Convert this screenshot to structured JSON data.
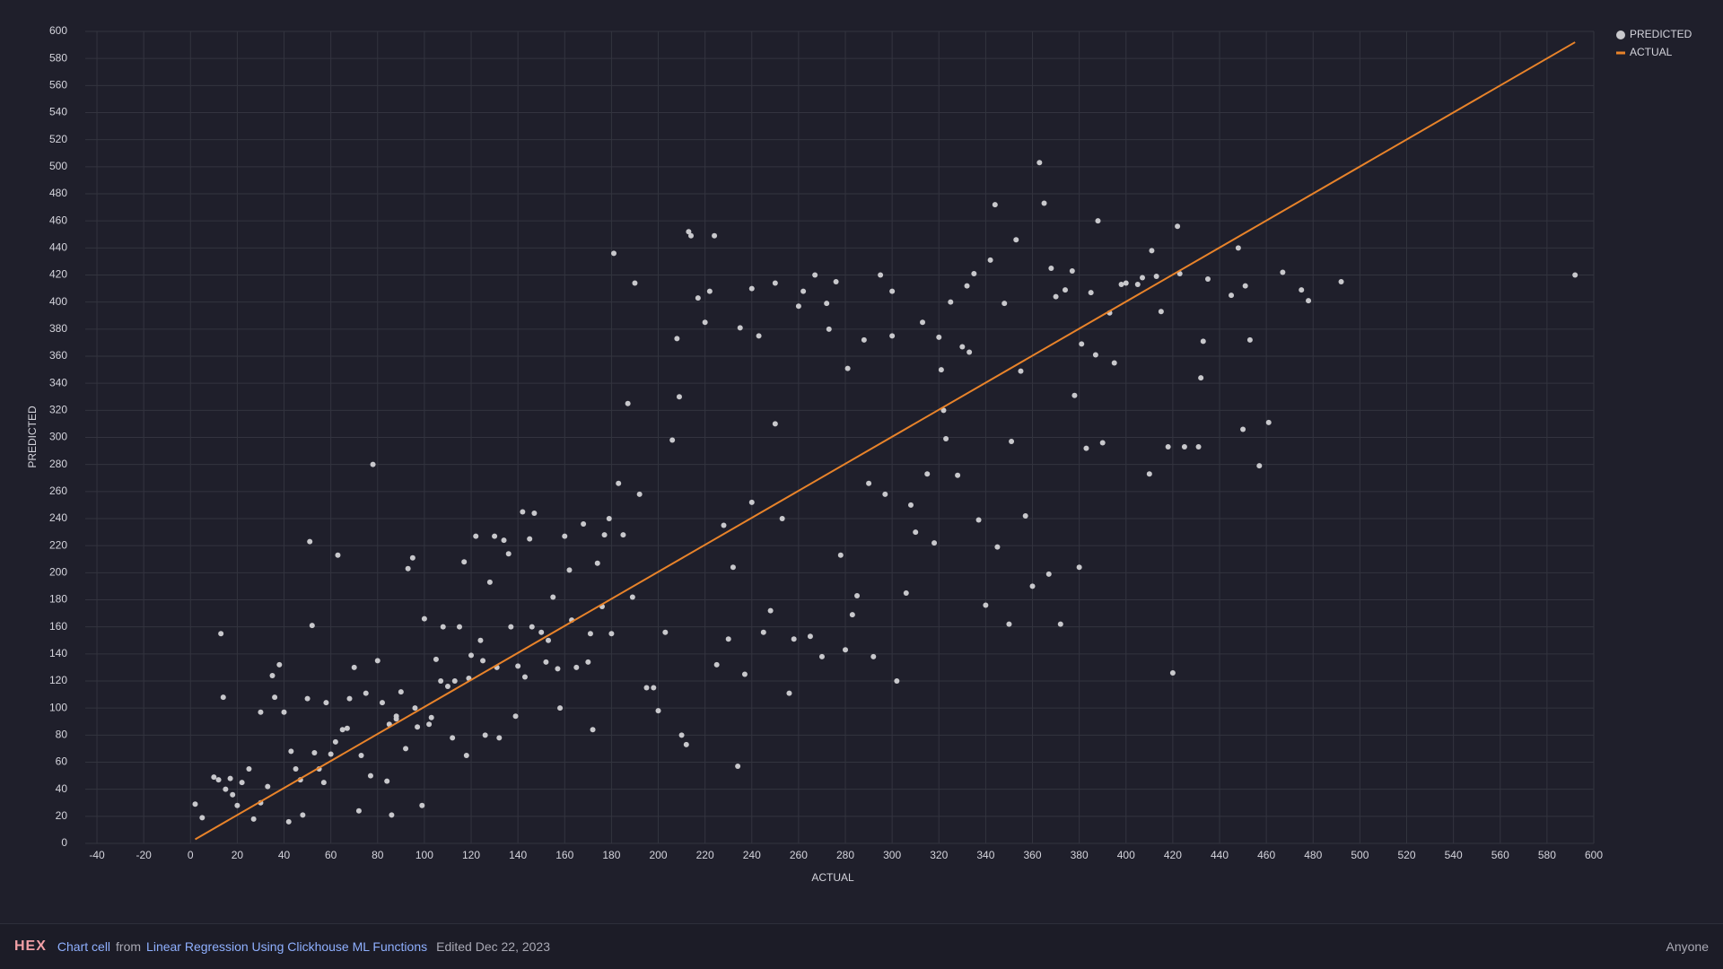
{
  "chart_data": {
    "type": "scatter",
    "x_label": "ACTUAL",
    "y_label": "PREDICTED",
    "xlim": [
      -45,
      600
    ],
    "ylim": [
      0,
      600
    ],
    "xticks": [
      -40,
      -20,
      0,
      20,
      40,
      60,
      80,
      100,
      120,
      140,
      160,
      180,
      200,
      220,
      240,
      260,
      280,
      300,
      320,
      340,
      360,
      380,
      400,
      420,
      440,
      460,
      480,
      500,
      520,
      540,
      560,
      580,
      600
    ],
    "yticks": [
      0,
      20,
      40,
      60,
      80,
      100,
      120,
      140,
      160,
      180,
      200,
      220,
      240,
      260,
      280,
      300,
      320,
      340,
      360,
      380,
      400,
      420,
      440,
      460,
      480,
      500,
      520,
      540,
      560,
      580,
      600
    ],
    "grid": true,
    "legend": "top-right",
    "series": [
      {
        "name": "PREDICTED",
        "type": "scatter",
        "color": "#c8c8cc",
        "x": [
          2,
          5,
          10,
          12,
          13,
          14,
          15,
          17,
          18,
          20,
          22,
          25,
          27,
          30,
          33,
          35,
          36,
          38,
          40,
          42,
          43,
          47,
          48,
          50,
          51,
          52,
          53,
          55,
          58,
          60,
          63,
          65,
          68,
          70,
          72,
          73,
          75,
          77,
          78,
          80,
          82,
          84,
          86,
          88,
          90,
          92,
          93,
          95,
          97,
          99,
          100,
          103,
          105,
          108,
          110,
          112,
          115,
          117,
          118,
          120,
          122,
          124,
          126,
          128,
          130,
          132,
          134,
          136,
          139,
          140,
          142,
          143,
          145,
          147,
          150,
          152,
          155,
          157,
          158,
          160,
          162,
          165,
          168,
          170,
          172,
          174,
          177,
          179,
          180,
          181,
          183,
          185,
          187,
          189,
          190,
          192,
          195,
          198,
          200,
          203,
          206,
          208,
          209,
          210,
          212,
          213,
          214,
          217,
          220,
          222,
          224,
          225,
          228,
          230,
          232,
          234,
          235,
          237,
          240,
          240,
          243,
          245,
          248,
          250,
          250,
          253,
          256,
          258,
          260,
          262,
          265,
          267,
          270,
          272,
          273,
          276,
          278,
          280,
          281,
          283,
          285,
          288,
          290,
          292,
          295,
          297,
          300,
          300,
          302,
          306,
          308,
          310,
          313,
          315,
          318,
          320,
          321,
          322,
          323,
          325,
          328,
          330,
          332,
          333,
          335,
          337,
          340,
          342,
          344,
          345,
          348,
          350,
          351,
          353,
          355,
          357,
          360,
          363,
          365,
          367,
          368,
          370,
          372,
          374,
          377,
          378,
          380,
          381,
          383,
          385,
          387,
          388,
          390,
          393,
          395,
          398,
          400,
          405,
          407,
          410,
          411,
          413,
          415,
          418,
          420,
          422,
          423,
          425,
          431,
          432,
          433,
          435,
          445,
          448,
          450,
          451,
          453,
          457,
          461,
          467,
          475,
          478,
          492,
          592,
          30,
          45,
          57,
          62,
          67,
          85,
          88,
          96,
          102,
          107,
          113,
          119,
          125,
          131,
          137,
          146,
          153,
          163,
          171,
          176
        ],
        "values": [
          29,
          19,
          49,
          47,
          155,
          108,
          40,
          48,
          36,
          28,
          45,
          55,
          18,
          97,
          42,
          124,
          108,
          132,
          97,
          16,
          68,
          47,
          21,
          107,
          223,
          161,
          67,
          55,
          104,
          66,
          213,
          84,
          107,
          130,
          24,
          65,
          111,
          50,
          280,
          135,
          104,
          46,
          21,
          94,
          112,
          70,
          203,
          211,
          86,
          28,
          166,
          93,
          136,
          160,
          116,
          78,
          160,
          208,
          65,
          139,
          227,
          150,
          80,
          193,
          227,
          78,
          224,
          214,
          94,
          131,
          245,
          123,
          225,
          244,
          156,
          134,
          182,
          129,
          100,
          227,
          202,
          130,
          236,
          134,
          84,
          207,
          228,
          240,
          155,
          436,
          266,
          228,
          325,
          182,
          414,
          258,
          115,
          115,
          98,
          156,
          298,
          373,
          330,
          80,
          73,
          452,
          449,
          403,
          385,
          408,
          449,
          132,
          235,
          151,
          204,
          57,
          381,
          125,
          410,
          252,
          375,
          156,
          172,
          414,
          310,
          240,
          111,
          151,
          397,
          408,
          153,
          420,
          138,
          399,
          380,
          415,
          213,
          143,
          351,
          169,
          183,
          372,
          266,
          138,
          420,
          258,
          408,
          375,
          120,
          185,
          250,
          230,
          385,
          273,
          222,
          374,
          350,
          320,
          299,
          400,
          272,
          367,
          412,
          363,
          421,
          239,
          176,
          431,
          472,
          219,
          399,
          162,
          297,
          446,
          349,
          242,
          190,
          503,
          473,
          199,
          425,
          404,
          162,
          409,
          423,
          331,
          204,
          369,
          292,
          407,
          361,
          460,
          296,
          392,
          355,
          413,
          414,
          413,
          418,
          273,
          438,
          419,
          393,
          293,
          126,
          456,
          421,
          293,
          293,
          344,
          371,
          417,
          405,
          440,
          306,
          412,
          372,
          279,
          311,
          422,
          409,
          401,
          415,
          420,
          30,
          55,
          45,
          75,
          85,
          88,
          92,
          100,
          88,
          120,
          120,
          122,
          135,
          130,
          160,
          160,
          150,
          165,
          155,
          175
        ]
      },
      {
        "name": "ACTUAL",
        "type": "line",
        "color": "#e8832a",
        "x": [
          2,
          592
        ],
        "values": [
          3,
          592
        ]
      }
    ]
  },
  "footer": {
    "logo": "HEX",
    "cell": "Chart cell",
    "from": "from",
    "project": "Linear Regression Using Clickhouse ML Functions",
    "edited": "Edited Dec 22, 2023",
    "visibility": "Anyone"
  }
}
